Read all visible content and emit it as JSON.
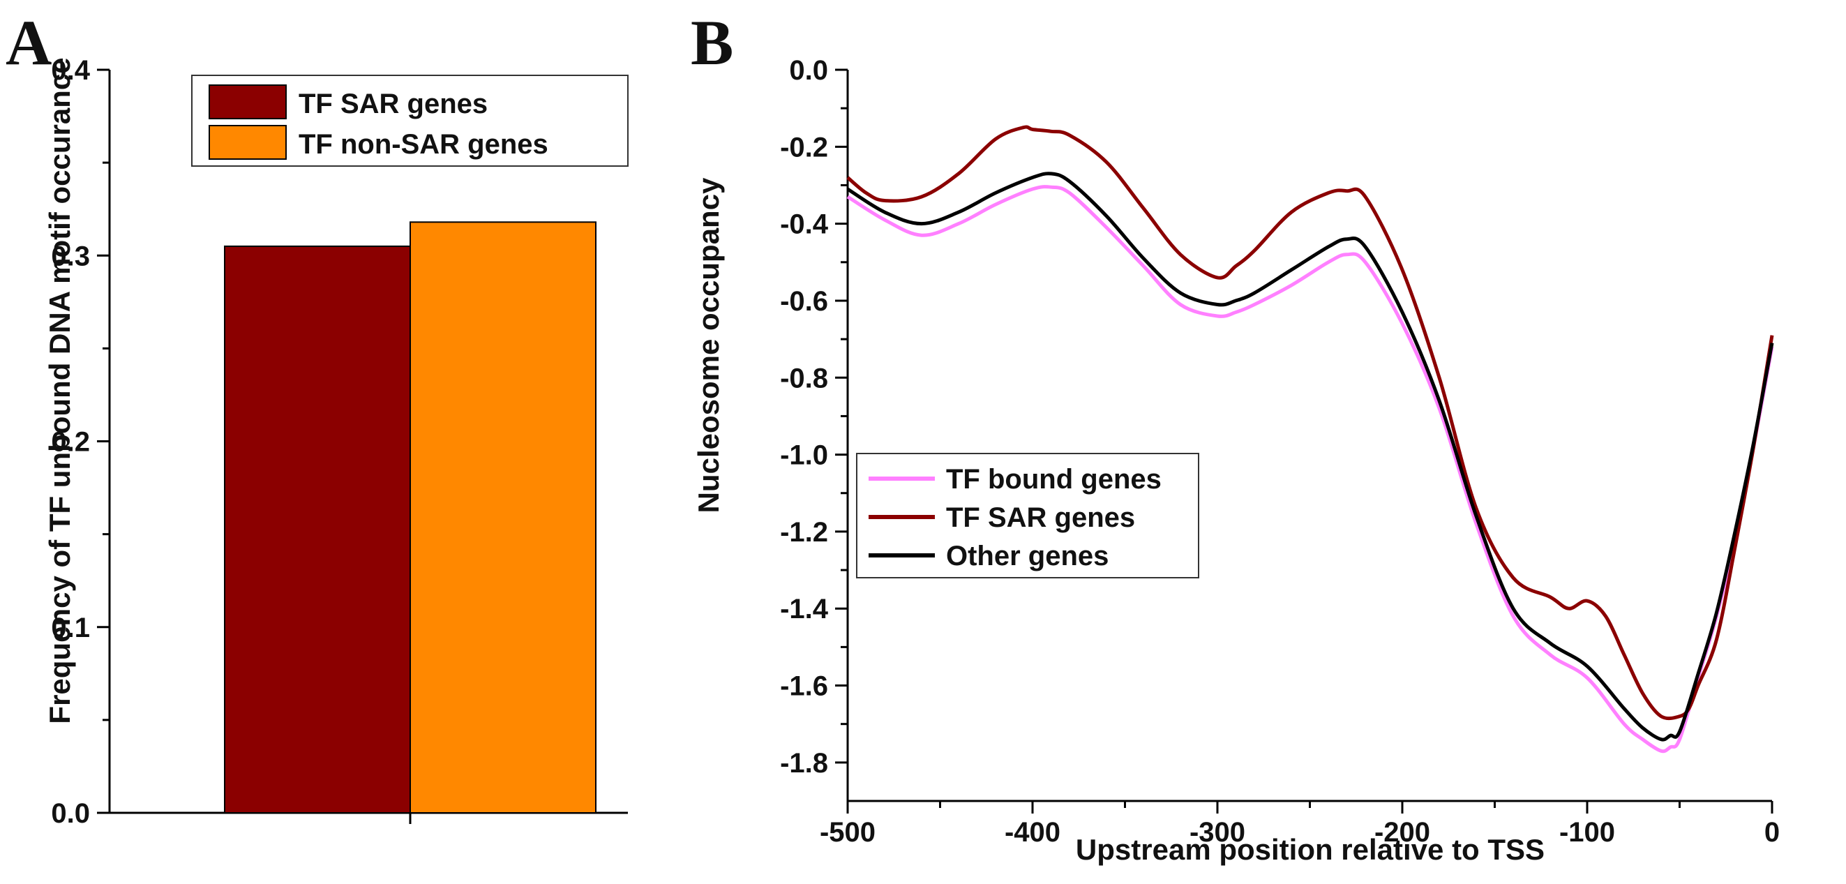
{
  "chart_data": [
    {
      "panel_label": "A",
      "type": "bar",
      "title": "",
      "xlabel": "",
      "ylabel": "Frequency of TF unbound DNA motif occurance",
      "ylim": [
        0.0,
        0.4
      ],
      "yticks": [
        "0.0",
        "0.1",
        "0.2",
        "0.3",
        "0.4"
      ],
      "series": [
        {
          "name": "TF SAR genes",
          "value": 0.305,
          "color": "#8B0000"
        },
        {
          "name": "TF non-SAR genes",
          "value": 0.318,
          "color": "#FF8800"
        }
      ],
      "legend_position": "top"
    },
    {
      "panel_label": "B",
      "type": "line",
      "title": "",
      "xlabel": "Upstream position relative to TSS",
      "ylabel": "Nucleosome occupancy",
      "xlim": [
        -500,
        0
      ],
      "ylim": [
        -1.9,
        0.0
      ],
      "xticks": [
        "-500",
        "-400",
        "-300",
        "-200",
        "-100",
        "0"
      ],
      "yticks": [
        "0.0",
        "-0.2",
        "-0.4",
        "-0.6",
        "-0.8",
        "-1.0",
        "-1.2",
        "-1.4",
        "-1.6",
        "-1.8"
      ],
      "legend_position": "bottom-left",
      "series": [
        {
          "name": "TF bound genes",
          "color": "#FF80FF",
          "x": [
            -500,
            -480,
            -460,
            -440,
            -420,
            -400,
            -390,
            -380,
            -360,
            -340,
            -320,
            -300,
            -290,
            -280,
            -260,
            -240,
            -230,
            -220,
            -200,
            -180,
            -160,
            -140,
            -120,
            -100,
            -80,
            -70,
            -60,
            -55,
            -50,
            -40,
            -30,
            -20,
            -10,
            0
          ],
          "y": [
            -0.33,
            -0.39,
            -0.43,
            -0.4,
            -0.35,
            -0.31,
            -0.305,
            -0.32,
            -0.41,
            -0.51,
            -0.61,
            -0.64,
            -0.63,
            -0.61,
            -0.56,
            -0.5,
            -0.48,
            -0.5,
            -0.66,
            -0.88,
            -1.18,
            -1.42,
            -1.52,
            -1.58,
            -1.7,
            -1.74,
            -1.77,
            -1.76,
            -1.74,
            -1.58,
            -1.42,
            -1.22,
            -0.98,
            -0.72
          ]
        },
        {
          "name": "TF SAR genes",
          "color": "#8B0000",
          "x": [
            -500,
            -490,
            -480,
            -460,
            -440,
            -420,
            -405,
            -400,
            -390,
            -380,
            -360,
            -340,
            -320,
            -300,
            -290,
            -280,
            -260,
            -240,
            -230,
            -220,
            -200,
            -180,
            -160,
            -140,
            -120,
            -110,
            -100,
            -90,
            -80,
            -70,
            -60,
            -50,
            -45,
            -40,
            -30,
            -20,
            -10,
            0
          ],
          "y": [
            -0.28,
            -0.32,
            -0.34,
            -0.33,
            -0.27,
            -0.18,
            -0.15,
            -0.155,
            -0.16,
            -0.17,
            -0.24,
            -0.36,
            -0.48,
            -0.54,
            -0.51,
            -0.47,
            -0.37,
            -0.32,
            -0.315,
            -0.33,
            -0.52,
            -0.8,
            -1.14,
            -1.32,
            -1.37,
            -1.4,
            -1.38,
            -1.42,
            -1.52,
            -1.62,
            -1.68,
            -1.68,
            -1.66,
            -1.6,
            -1.48,
            -1.24,
            -0.98,
            -0.69
          ]
        },
        {
          "name": "Other genes",
          "color": "#000000",
          "x": [
            -500,
            -480,
            -460,
            -440,
            -420,
            -400,
            -390,
            -380,
            -360,
            -340,
            -320,
            -300,
            -290,
            -280,
            -260,
            -240,
            -230,
            -220,
            -200,
            -180,
            -160,
            -140,
            -120,
            -100,
            -80,
            -70,
            -60,
            -55,
            -50,
            -40,
            -30,
            -20,
            -10,
            0
          ],
          "y": [
            -0.31,
            -0.37,
            -0.4,
            -0.37,
            -0.32,
            -0.28,
            -0.27,
            -0.29,
            -0.38,
            -0.49,
            -0.58,
            -0.61,
            -0.6,
            -0.58,
            -0.52,
            -0.46,
            -0.44,
            -0.46,
            -0.63,
            -0.86,
            -1.16,
            -1.4,
            -1.49,
            -1.55,
            -1.66,
            -1.71,
            -1.74,
            -1.73,
            -1.72,
            -1.57,
            -1.41,
            -1.2,
            -0.97,
            -0.71
          ]
        }
      ]
    }
  ]
}
